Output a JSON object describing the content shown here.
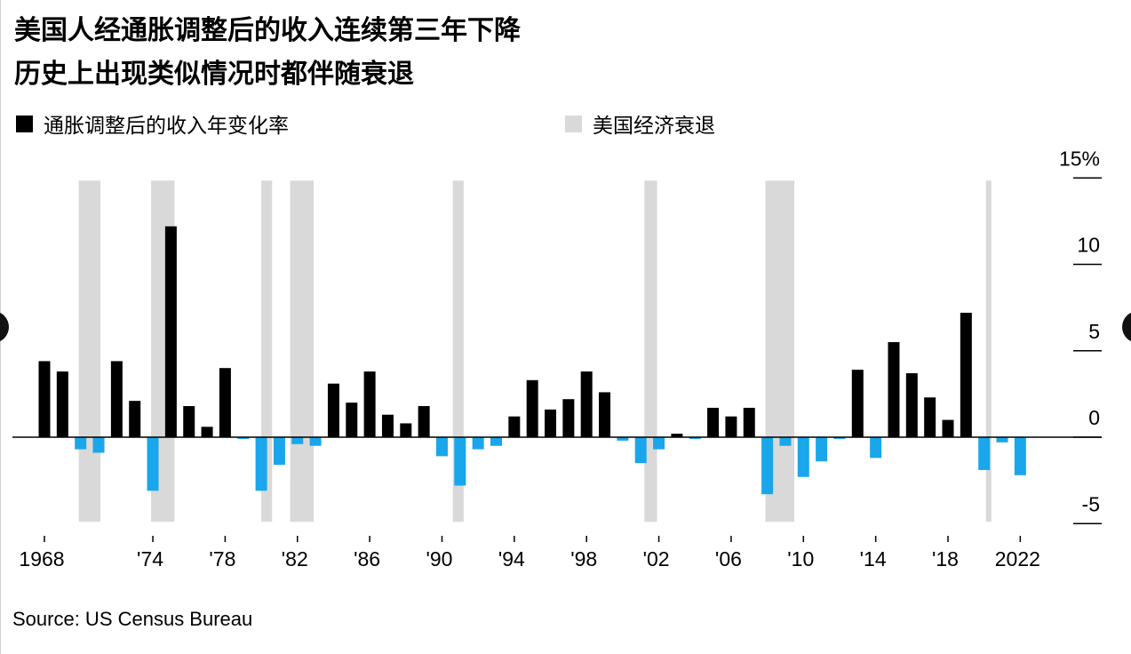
{
  "title_line1": "美国人经通胀调整后的收入连续第三年下降",
  "title_line2": "历史上出现类似情况时都伴随衰退",
  "legend": {
    "income_label": "通胀调整后的收入年变化率",
    "recession_label": "美国经济衰退"
  },
  "source": "Source: US Census Bureau",
  "colors": {
    "positive": "#000000",
    "negative": "#1aa6ea",
    "recession": "#d9d9d9",
    "axis": "#000000"
  },
  "chart_data": {
    "type": "bar",
    "x": [
      1968,
      1969,
      1970,
      1971,
      1972,
      1973,
      1974,
      1975,
      1976,
      1977,
      1978,
      1979,
      1980,
      1981,
      1982,
      1983,
      1984,
      1985,
      1986,
      1987,
      1988,
      1989,
      1990,
      1991,
      1992,
      1993,
      1994,
      1995,
      1996,
      1997,
      1998,
      1999,
      2000,
      2001,
      2002,
      2003,
      2004,
      2005,
      2006,
      2007,
      2008,
      2009,
      2010,
      2011,
      2012,
      2013,
      2014,
      2015,
      2016,
      2017,
      2018,
      2019,
      2020,
      2021,
      2022
    ],
    "values": [
      4.4,
      3.8,
      -0.7,
      -0.9,
      4.4,
      2.1,
      -3.1,
      12.2,
      1.8,
      0.6,
      4.0,
      -0.1,
      -3.1,
      -1.6,
      -0.4,
      -0.5,
      3.1,
      2.0,
      3.8,
      1.3,
      0.8,
      1.8,
      -1.1,
      -2.8,
      -0.7,
      -0.5,
      1.2,
      3.3,
      1.6,
      2.2,
      3.8,
      2.6,
      -0.2,
      -1.5,
      -0.7,
      0.2,
      -0.1,
      1.7,
      1.2,
      1.7,
      -3.3,
      -0.5,
      -2.3,
      -1.4,
      -0.1,
      3.9,
      -1.2,
      5.5,
      3.7,
      2.3,
      1.0,
      7.2,
      -1.9,
      -0.3,
      -2.2
    ],
    "recessions": [
      [
        1969.9,
        1971.1
      ],
      [
        1973.9,
        1975.2
      ],
      [
        1980.0,
        1980.6
      ],
      [
        1981.6,
        1982.9
      ],
      [
        1990.6,
        1991.2
      ],
      [
        2001.2,
        2001.9
      ],
      [
        2007.9,
        2009.5
      ],
      [
        2020.1,
        2020.4
      ]
    ],
    "ylim": [
      -5,
      15
    ],
    "yticks": [
      {
        "value": 15,
        "label": "15%"
      },
      {
        "value": 10,
        "label": "10"
      },
      {
        "value": 5,
        "label": "5"
      },
      {
        "value": 0,
        "label": "0"
      },
      {
        "value": -5,
        "label": "-5"
      }
    ],
    "xticks": [
      {
        "year": 1968,
        "label": "1968"
      },
      {
        "year": 1974,
        "label": "'74"
      },
      {
        "year": 1978,
        "label": "'78"
      },
      {
        "year": 1982,
        "label": "'82"
      },
      {
        "year": 1986,
        "label": "'86"
      },
      {
        "year": 1990,
        "label": "'90"
      },
      {
        "year": 1994,
        "label": "'94"
      },
      {
        "year": 1998,
        "label": "'98"
      },
      {
        "year": 2002,
        "label": "'02"
      },
      {
        "year": 2006,
        "label": "'06"
      },
      {
        "year": 2010,
        "label": "'10"
      },
      {
        "year": 2014,
        "label": "'14"
      },
      {
        "year": 2018,
        "label": "'18"
      },
      {
        "year": 2022,
        "label": "2022"
      }
    ],
    "grid": false
  }
}
